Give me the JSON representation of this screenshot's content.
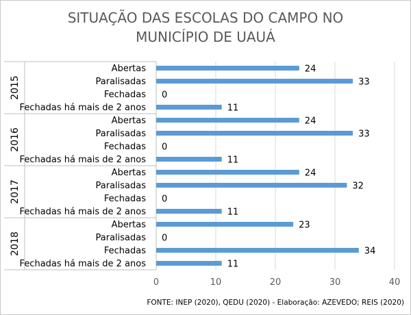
{
  "chart_data": {
    "type": "bar",
    "orientation": "horizontal",
    "title": [
      "SITUAÇÃO DAS ESCOLAS DO CAMPO NO",
      "MUNICÍPIO DE UAUÁ"
    ],
    "xlim": [
      0,
      40
    ],
    "x_ticks": [
      "0",
      "10",
      "20",
      "30",
      "40"
    ],
    "grid": true,
    "data_labels": true,
    "bar_color": "#5b9bd5",
    "groups": [
      {
        "group": "2015",
        "categories": [
          "Abertas",
          "Paralisadas",
          "Fechadas",
          "Fechadas há mais de 2 anos"
        ],
        "values": [
          24,
          33,
          0,
          11
        ]
      },
      {
        "group": "2016",
        "categories": [
          "Abertas",
          "Paralisadas",
          "Fechadas",
          "Fechadas há mais de 2 anos"
        ],
        "values": [
          24,
          33,
          0,
          11
        ]
      },
      {
        "group": "2017",
        "categories": [
          "Abertas",
          "Paralisadas",
          "Fechadas",
          "Fechadas há mais de 2 anos"
        ],
        "values": [
          24,
          32,
          0,
          11
        ]
      },
      {
        "group": "2018",
        "categories": [
          "Abertas",
          "Paralisadas",
          "Fechadas",
          "Fechadas há mais de 2 anos"
        ],
        "values": [
          23,
          0,
          34,
          11
        ]
      }
    ],
    "source_note": "FONTE: INEP (2020),  QEDU (2020)  - Elaboração: AZEVEDO; REIS (2020)"
  }
}
